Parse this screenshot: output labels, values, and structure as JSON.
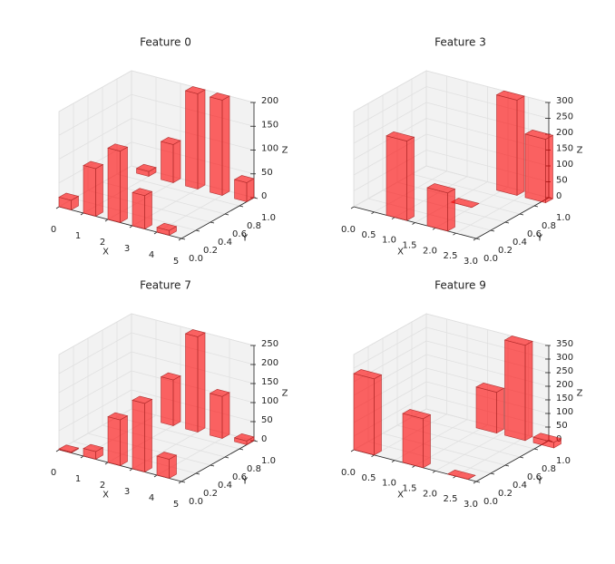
{
  "chart_data": [
    {
      "type": "bar3d",
      "title": "Feature 0",
      "xlabel": "X",
      "ylabel": "Y",
      "zlabel": "Z",
      "color": "#ff0000",
      "x": [
        0,
        1,
        2,
        3,
        4,
        0.5,
        1.5,
        2.5,
        3.5,
        4.5
      ],
      "y": [
        0,
        0,
        0,
        0,
        0,
        0.9,
        0.9,
        0.9,
        0.9,
        0.9
      ],
      "values": [
        20,
        100,
        150,
        70,
        10,
        10,
        80,
        200,
        200,
        40
      ],
      "xlim": [
        0,
        5
      ],
      "xticks": [
        0,
        1,
        2,
        3,
        4,
        5
      ],
      "ylim": [
        0,
        1
      ],
      "yticks": [
        {
          "value": 0,
          "label": "0.0"
        },
        0.2,
        0.4,
        0.6,
        0.8,
        {
          "value": 1,
          "label": "1.0"
        }
      ],
      "zlim": [
        0,
        200
      ],
      "zticks": [
        0,
        50,
        100,
        150,
        200
      ]
    },
    {
      "type": "bar3d",
      "title": "Feature 3",
      "xlabel": "X",
      "ylabel": "Y",
      "zlabel": "Z",
      "color": "#ff0000",
      "x": [
        0.8,
        1.5,
        1.8,
        1.9,
        2.6
      ],
      "y": [
        0,
        0.5,
        0,
        0.9,
        0.9
      ],
      "values": [
        250,
        0,
        120,
        300,
        200
      ],
      "xlim": [
        0,
        3
      ],
      "xticks": [
        {
          "value": 0,
          "label": "0.0"
        },
        0.5,
        {
          "value": 1,
          "label": "1.0"
        },
        1.5,
        {
          "value": 2,
          "label": "2.0"
        },
        2.5,
        {
          "value": 3,
          "label": "3.0"
        }
      ],
      "ylim": [
        0,
        1
      ],
      "yticks": [
        {
          "value": 0,
          "label": "0.0"
        },
        0.2,
        0.4,
        0.6,
        0.8,
        {
          "value": 1,
          "label": "1.0"
        }
      ],
      "zlim": [
        0,
        300
      ],
      "zticks": [
        0,
        50,
        100,
        150,
        200,
        250,
        300
      ]
    },
    {
      "type": "bar3d",
      "title": "Feature 7",
      "xlabel": "X",
      "ylabel": "Y",
      "zlabel": "Z",
      "color": "#ff0000",
      "x": [
        0,
        1,
        2,
        3,
        4,
        1.5,
        2.5,
        3.5,
        4.5
      ],
      "y": [
        0,
        0,
        0,
        0,
        0,
        0.9,
        0.9,
        0.9,
        0.9
      ],
      "values": [
        2,
        20,
        120,
        180,
        50,
        120,
        250,
        110,
        10
      ],
      "xlim": [
        0,
        5
      ],
      "xticks": [
        0,
        1,
        2,
        3,
        4,
        5
      ],
      "ylim": [
        0,
        1
      ],
      "yticks": [
        {
          "value": 0,
          "label": "0.0"
        },
        0.2,
        0.4,
        0.6,
        0.8,
        {
          "value": 1,
          "label": "1.0"
        }
      ],
      "zlim": [
        0,
        250
      ],
      "zticks": [
        0,
        50,
        100,
        150,
        200,
        250
      ]
    },
    {
      "type": "bar3d",
      "title": "Feature 9",
      "xlabel": "X",
      "ylabel": "Y",
      "zlabel": "Z",
      "color": "#ff0000",
      "x": [
        0,
        1.2,
        2.3,
        1.4,
        2.1,
        2.8
      ],
      "y": [
        0,
        0,
        0,
        0.9,
        0.9,
        0.9
      ],
      "values": [
        280,
        180,
        0,
        150,
        350,
        20
      ],
      "xlim": [
        0,
        3
      ],
      "xticks": [
        {
          "value": 0,
          "label": "0.0"
        },
        0.5,
        {
          "value": 1,
          "label": "1.0"
        },
        1.5,
        {
          "value": 2,
          "label": "2.0"
        },
        2.5,
        {
          "value": 3,
          "label": "3.0"
        }
      ],
      "ylim": [
        0,
        1
      ],
      "yticks": [
        {
          "value": 0,
          "label": "0.0"
        },
        0.2,
        0.4,
        0.6,
        0.8,
        {
          "value": 1,
          "label": "1.0"
        }
      ],
      "zlim": [
        0,
        350
      ],
      "zticks": [
        0,
        50,
        100,
        150,
        200,
        250,
        300,
        350
      ]
    }
  ]
}
